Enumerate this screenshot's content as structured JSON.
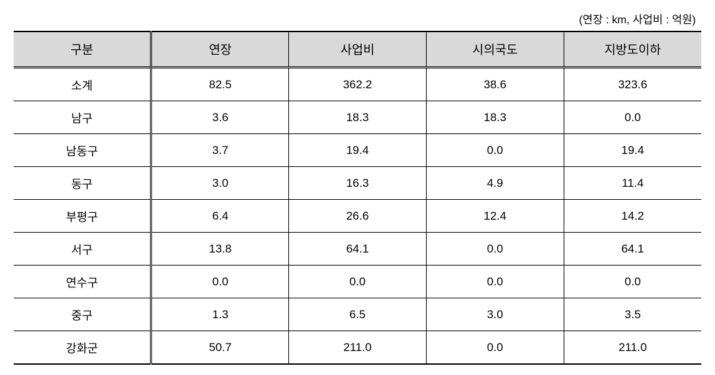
{
  "unit_note": "(연장 : km, 사업비 : 억원)",
  "table": {
    "type": "table",
    "background_color": "#ffffff",
    "header_bg": "#d9d9d9",
    "border_color": "#000000",
    "font_family": "Malgun Gothic",
    "header_fontsize": 18,
    "cell_fontsize": 17,
    "columns": [
      "구분",
      "연장",
      "사업비",
      "시의국도",
      "지방도이하"
    ],
    "column_alignment": [
      "center",
      "center",
      "center",
      "center",
      "center"
    ],
    "rows": [
      [
        "소계",
        "82.5",
        "362.2",
        "38.6",
        "323.6"
      ],
      [
        "남구",
        "3.6",
        "18.3",
        "18.3",
        "0.0"
      ],
      [
        "남동구",
        "3.7",
        "19.4",
        "0.0",
        "19.4"
      ],
      [
        "동구",
        "3.0",
        "16.3",
        "4.9",
        "11.4"
      ],
      [
        "부평구",
        "6.4",
        "26.6",
        "12.4",
        "14.2"
      ],
      [
        "서구",
        "13.8",
        "64.1",
        "0.0",
        "64.1"
      ],
      [
        "연수구",
        "0.0",
        "0.0",
        "0.0",
        "0.0"
      ],
      [
        "중구",
        "1.3",
        "6.5",
        "3.0",
        "3.5"
      ],
      [
        "강화군",
        "50.7",
        "211.0",
        "0.0",
        "211.0"
      ]
    ]
  }
}
